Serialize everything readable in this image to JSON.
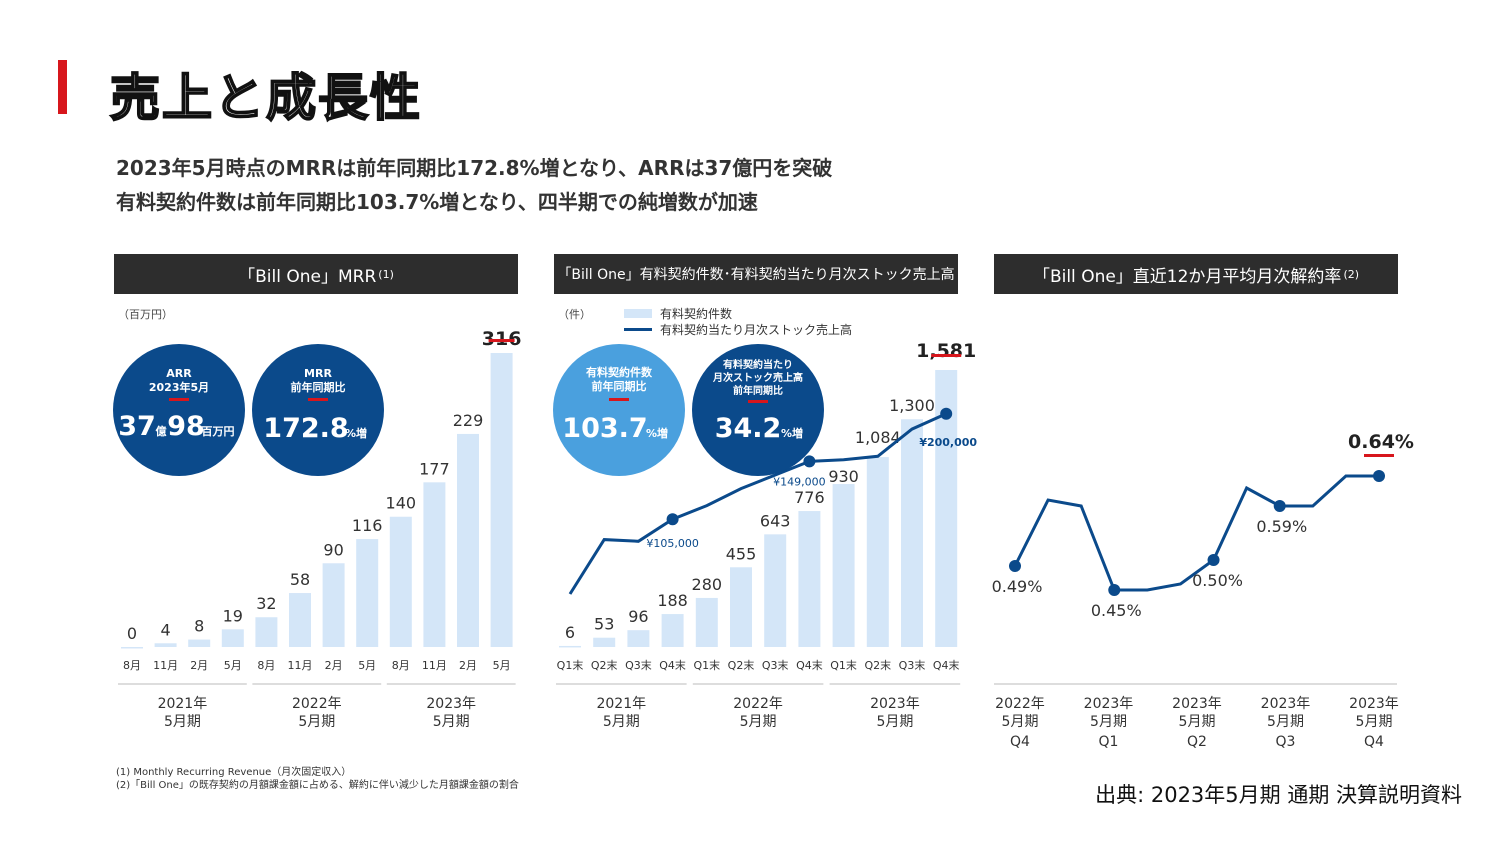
{
  "page": {
    "title": "売上と成長性",
    "subtitle1": "2023年5月時点のMRRは前年同期比172.8%増となり、ARRは37億円を突破",
    "subtitle2": "有料契約件数は前年同期比103.7%増となり、四半期での純増数が加速",
    "footnote1": "(1) Monthly Recurring Revenue（月次固定収入）",
    "footnote2": "(2)「Bill One」の既存契約の月額課金額に占める、解約に伴い減少した月額課金額の割合",
    "source": "出典: 2023年5月期 通期 決算説明資料"
  },
  "colors": {
    "accent_red": "#d7161c",
    "header_bg": "#2d2d2d",
    "bar": "#d4e6f8",
    "line": "#0b4a8b",
    "circle_dark": "#0b4a8b",
    "circle_light": "#4aa0de"
  },
  "chart_data": [
    {
      "type": "bar",
      "header": "「Bill One」MRR",
      "header_note": "(1)",
      "unit": "（百万円）",
      "categories": [
        "8月",
        "11月",
        "2月",
        "5月",
        "8月",
        "11月",
        "2月",
        "5月",
        "8月",
        "11月",
        "2月",
        "5月"
      ],
      "values": [
        0,
        4,
        8,
        19,
        32,
        58,
        90,
        116,
        140,
        177,
        229,
        316
      ],
      "value_labels": [
        "0",
        "4",
        "8",
        "19",
        "32",
        "58",
        "90",
        "116",
        "140",
        "177",
        "229",
        "316"
      ],
      "groups": [
        {
          "line1": "2021年",
          "line2": "5月期"
        },
        {
          "line1": "2022年",
          "line2": "5月期"
        },
        {
          "line1": "2023年",
          "line2": "5月期"
        }
      ],
      "highlight_index": 11,
      "circles": [
        {
          "title1": "ARR",
          "title2": "2023年5月",
          "big": "37",
          "small1": "億",
          "big2": "98",
          "small2": "百万円"
        },
        {
          "title1": "MRR",
          "title2": "前年同期比",
          "big": "172.8",
          "small1": "%増"
        }
      ]
    },
    {
      "type": "bar+line",
      "header": "「Bill One」有料契約件数･有料契約当たり月次ストック売上高",
      "unit": "（件）",
      "legend": [
        "有料契約件数",
        "有料契約当たり月次ストック売上高"
      ],
      "categories": [
        "Q1末",
        "Q2末",
        "Q3末",
        "Q4末",
        "Q1末",
        "Q2末",
        "Q3末",
        "Q4末",
        "Q1末",
        "Q2末",
        "Q3末",
        "Q4末"
      ],
      "values": [
        6,
        53,
        96,
        188,
        280,
        455,
        643,
        776,
        930,
        1084,
        1300,
        1581
      ],
      "value_labels": [
        "6",
        "53",
        "96",
        "188",
        "280",
        "455",
        "643",
        "776",
        "930",
        "1,084",
        "1,300",
        "1,581"
      ],
      "line_relative": [
        0.0,
        0.32,
        0.31,
        0.44,
        0.52,
        0.62,
        0.7,
        0.78,
        0.79,
        0.81,
        0.97,
        1.06
      ],
      "line_points": [
        {
          "index": 3,
          "label": "¥105,000"
        },
        {
          "index": 7,
          "label": "¥149,000"
        },
        {
          "index": 11,
          "label": "¥200,000"
        }
      ],
      "groups": [
        {
          "line1": "2021年",
          "line2": "5月期"
        },
        {
          "line1": "2022年",
          "line2": "5月期"
        },
        {
          "line1": "2023年",
          "line2": "5月期"
        }
      ],
      "highlight_index": 11,
      "circles": [
        {
          "title1": "有料契約件数",
          "title2": "前年同期比",
          "big": "103.7",
          "small1": "%増"
        },
        {
          "title1": "有料契約当たり",
          "title2": "月次ストック売上高",
          "title3": "前年同期比",
          "big": "34.2",
          "small1": "%増"
        }
      ]
    },
    {
      "type": "line",
      "header": "「Bill One」直近12か月平均月次解約率",
      "header_note": "(2)",
      "y": [
        0.49,
        0.6,
        0.59,
        0.45,
        0.45,
        0.46,
        0.5,
        0.62,
        0.59,
        0.59,
        0.64,
        0.64
      ],
      "labeled_points": [
        {
          "index": 0,
          "label": "0.49%"
        },
        {
          "index": 3,
          "label": "0.45%"
        },
        {
          "index": 6,
          "label": "0.50%"
        },
        {
          "index": 8,
          "label": "0.59%"
        },
        {
          "index": 11,
          "label": "0.64%"
        }
      ],
      "x_labels": [
        {
          "line1": "2022年",
          "line2": "5月期",
          "line3": "Q4"
        },
        {
          "line1": "2023年",
          "line2": "5月期",
          "line3": "Q1"
        },
        {
          "line1": "2023年",
          "line2": "5月期",
          "line3": "Q2"
        },
        {
          "line1": "2023年",
          "line2": "5月期",
          "line3": "Q3"
        },
        {
          "line1": "2023年",
          "line2": "5月期",
          "line3": "Q4"
        }
      ],
      "ylim": [
        0.4,
        0.7
      ]
    }
  ]
}
